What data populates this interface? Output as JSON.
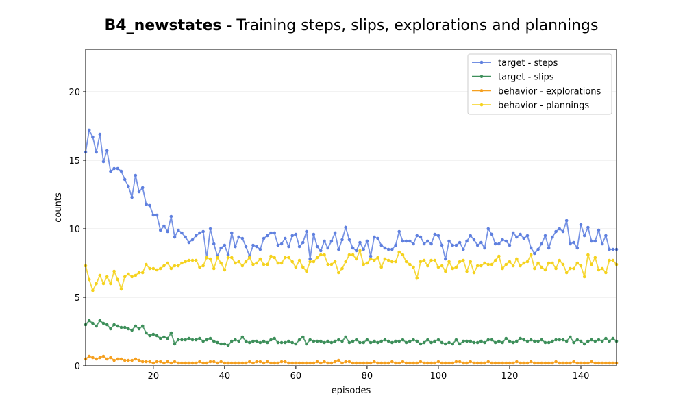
{
  "chart_data": {
    "type": "line",
    "title_bold": "B4_newstates",
    "title_rest": " - Training steps, slips, explorations and plannings",
    "xlabel": "episodes",
    "ylabel": "counts",
    "xlim": [
      1,
      150
    ],
    "ylim": [
      0,
      23.1
    ],
    "xticks": [
      20,
      40,
      60,
      80,
      100,
      120,
      140
    ],
    "yticks": [
      0,
      5,
      10,
      15,
      20
    ],
    "grid": "horizontal",
    "legend_position": "top-right",
    "x": [
      1,
      2,
      3,
      4,
      5,
      6,
      7,
      8,
      9,
      10,
      11,
      12,
      13,
      14,
      15,
      16,
      17,
      18,
      19,
      20,
      21,
      22,
      23,
      24,
      25,
      26,
      27,
      28,
      29,
      30,
      31,
      32,
      33,
      34,
      35,
      36,
      37,
      38,
      39,
      40,
      41,
      42,
      43,
      44,
      45,
      46,
      47,
      48,
      49,
      50,
      51,
      52,
      53,
      54,
      55,
      56,
      57,
      58,
      59,
      60,
      61,
      62,
      63,
      64,
      65,
      66,
      67,
      68,
      69,
      70,
      71,
      72,
      73,
      74,
      75,
      76,
      77,
      78,
      79,
      80,
      81,
      82,
      83,
      84,
      85,
      86,
      87,
      88,
      89,
      90,
      91,
      92,
      93,
      94,
      95,
      96,
      97,
      98,
      99,
      100,
      101,
      102,
      103,
      104,
      105,
      106,
      107,
      108,
      109,
      110,
      111,
      112,
      113,
      114,
      115,
      116,
      117,
      118,
      119,
      120,
      121,
      122,
      123,
      124,
      125,
      126,
      127,
      128,
      129,
      130,
      131,
      132,
      133,
      134,
      135,
      136,
      137,
      138,
      139,
      140,
      141,
      142,
      143,
      144,
      145,
      146,
      147,
      148,
      149,
      150
    ],
    "series": [
      {
        "name": "target - steps",
        "color": "#5f80df",
        "values": [
          15.6,
          17.2,
          16.7,
          15.6,
          16.9,
          14.9,
          15.7,
          14.2,
          14.4,
          14.4,
          14.2,
          13.6,
          13.1,
          12.3,
          13.9,
          12.7,
          13.0,
          11.8,
          11.7,
          11.0,
          11.0,
          9.9,
          10.2,
          9.8,
          10.9,
          9.4,
          9.9,
          9.7,
          9.4,
          9.0,
          9.2,
          9.5,
          9.7,
          9.8,
          7.9,
          10.0,
          8.9,
          8.0,
          8.6,
          8.8,
          8.1,
          9.7,
          8.7,
          9.4,
          9.3,
          8.7,
          8.0,
          8.8,
          8.7,
          8.5,
          9.3,
          9.5,
          9.7,
          9.7,
          8.8,
          8.9,
          9.3,
          8.7,
          9.5,
          9.6,
          8.7,
          9.0,
          9.8,
          7.8,
          9.6,
          8.7,
          8.4,
          9.1,
          8.6,
          9.1,
          9.7,
          8.5,
          9.2,
          10.1,
          9.2,
          8.6,
          8.4,
          9.0,
          8.5,
          9.1,
          8.0,
          9.4,
          9.3,
          8.8,
          8.6,
          8.5,
          8.5,
          8.8,
          9.8,
          9.1,
          9.1,
          9.1,
          8.9,
          9.5,
          9.4,
          8.9,
          9.1,
          8.9,
          9.6,
          9.5,
          8.8,
          7.8,
          9.1,
          8.8,
          8.8,
          9.0,
          8.5,
          9.1,
          9.5,
          9.2,
          8.8,
          9.0,
          8.6,
          10.0,
          9.6,
          8.9,
          8.9,
          9.2,
          9.1,
          8.8,
          9.7,
          9.4,
          9.6,
          9.3,
          9.5,
          8.6,
          8.2,
          8.5,
          8.9,
          9.5,
          8.6,
          9.4,
          9.8,
          10.0,
          9.8,
          10.6,
          8.9,
          9.0,
          8.6,
          10.3,
          9.5,
          10.1,
          9.1,
          9.1,
          9.9,
          8.9,
          9.5,
          8.5,
          8.5,
          8.5
        ]
      },
      {
        "name": "target - slips",
        "color": "#3d8f5a",
        "values": [
          3.0,
          3.3,
          3.1,
          2.9,
          3.3,
          3.1,
          3.0,
          2.7,
          3.0,
          2.9,
          2.8,
          2.8,
          2.7,
          2.6,
          2.9,
          2.7,
          2.9,
          2.4,
          2.2,
          2.3,
          2.2,
          2.0,
          2.1,
          2.0,
          2.4,
          1.6,
          1.9,
          1.9,
          1.9,
          2.0,
          1.9,
          1.9,
          2.0,
          1.8,
          1.9,
          2.0,
          1.8,
          1.7,
          1.6,
          1.6,
          1.5,
          1.8,
          1.9,
          1.8,
          2.1,
          1.8,
          1.7,
          1.8,
          1.8,
          1.7,
          1.8,
          1.7,
          1.9,
          2.0,
          1.7,
          1.7,
          1.7,
          1.8,
          1.7,
          1.6,
          1.9,
          2.1,
          1.6,
          1.9,
          1.8,
          1.8,
          1.8,
          1.7,
          1.8,
          1.7,
          1.8,
          1.9,
          1.8,
          2.1,
          1.7,
          1.8,
          1.9,
          1.7,
          1.7,
          1.9,
          1.7,
          1.8,
          1.7,
          1.8,
          1.9,
          1.8,
          1.7,
          1.8,
          1.8,
          1.9,
          1.7,
          1.8,
          1.9,
          1.8,
          1.6,
          1.7,
          1.9,
          1.7,
          1.8,
          1.9,
          1.7,
          1.6,
          1.7,
          1.6,
          1.9,
          1.6,
          1.8,
          1.8,
          1.8,
          1.7,
          1.7,
          1.8,
          1.7,
          1.9,
          1.9,
          1.7,
          1.8,
          1.7,
          2.0,
          1.8,
          1.7,
          1.8,
          2.0,
          1.9,
          1.8,
          1.9,
          1.8,
          1.8,
          1.9,
          1.7,
          1.7,
          1.8,
          1.9,
          1.9,
          1.9,
          1.8,
          2.1,
          1.7,
          1.9,
          1.8,
          1.6,
          1.8,
          1.9,
          1.8,
          1.9,
          1.8,
          2.0,
          1.8,
          2.0,
          1.8
        ]
      },
      {
        "name": "behavior - explorations",
        "color": "#f5a020",
        "values": [
          0.5,
          0.7,
          0.6,
          0.5,
          0.6,
          0.7,
          0.5,
          0.6,
          0.4,
          0.5,
          0.5,
          0.4,
          0.4,
          0.4,
          0.5,
          0.4,
          0.3,
          0.3,
          0.3,
          0.2,
          0.3,
          0.3,
          0.2,
          0.3,
          0.2,
          0.3,
          0.2,
          0.2,
          0.2,
          0.2,
          0.2,
          0.2,
          0.3,
          0.2,
          0.2,
          0.3,
          0.3,
          0.2,
          0.3,
          0.2,
          0.2,
          0.2,
          0.2,
          0.2,
          0.2,
          0.2,
          0.3,
          0.2,
          0.3,
          0.3,
          0.2,
          0.3,
          0.2,
          0.2,
          0.2,
          0.3,
          0.3,
          0.2,
          0.2,
          0.2,
          0.2,
          0.2,
          0.2,
          0.2,
          0.2,
          0.3,
          0.2,
          0.3,
          0.2,
          0.2,
          0.3,
          0.4,
          0.2,
          0.3,
          0.3,
          0.2,
          0.2,
          0.2,
          0.2,
          0.2,
          0.2,
          0.3,
          0.2,
          0.2,
          0.2,
          0.2,
          0.3,
          0.2,
          0.2,
          0.3,
          0.2,
          0.2,
          0.2,
          0.2,
          0.3,
          0.2,
          0.2,
          0.2,
          0.2,
          0.3,
          0.2,
          0.2,
          0.2,
          0.2,
          0.3,
          0.3,
          0.2,
          0.2,
          0.3,
          0.2,
          0.2,
          0.2,
          0.2,
          0.3,
          0.2,
          0.2,
          0.2,
          0.2,
          0.2,
          0.2,
          0.2,
          0.3,
          0.2,
          0.2,
          0.2,
          0.3,
          0.2,
          0.2,
          0.2,
          0.2,
          0.2,
          0.2,
          0.3,
          0.2,
          0.2,
          0.2,
          0.2,
          0.3,
          0.2,
          0.2,
          0.2,
          0.2,
          0.3,
          0.2,
          0.2,
          0.2,
          0.2,
          0.2,
          0.2,
          0.2
        ]
      },
      {
        "name": "behavior - plannings",
        "color": "#f5d21e",
        "values": [
          7.3,
          6.3,
          5.5,
          6.0,
          6.6,
          6.0,
          6.5,
          6.0,
          6.9,
          6.3,
          5.6,
          6.5,
          6.7,
          6.5,
          6.6,
          6.8,
          6.8,
          7.4,
          7.1,
          7.1,
          7.0,
          7.1,
          7.3,
          7.5,
          7.1,
          7.3,
          7.3,
          7.5,
          7.6,
          7.7,
          7.7,
          7.7,
          7.2,
          7.3,
          7.9,
          7.8,
          7.1,
          7.9,
          7.5,
          7.0,
          7.9,
          7.9,
          7.5,
          7.6,
          7.3,
          7.6,
          7.9,
          7.4,
          7.5,
          7.8,
          7.4,
          7.4,
          8.0,
          7.9,
          7.5,
          7.5,
          7.9,
          7.9,
          7.6,
          7.2,
          7.7,
          7.2,
          6.9,
          7.6,
          7.6,
          7.9,
          8.1,
          8.1,
          7.4,
          7.4,
          7.6,
          6.8,
          7.1,
          7.6,
          8.1,
          8.1,
          7.8,
          8.4,
          7.4,
          7.5,
          7.8,
          7.7,
          7.9,
          7.2,
          7.8,
          7.7,
          7.6,
          7.6,
          8.3,
          8.1,
          7.6,
          7.4,
          7.2,
          6.4,
          7.6,
          7.7,
          7.3,
          7.7,
          7.7,
          7.2,
          7.3,
          6.9,
          7.6,
          7.1,
          7.2,
          7.6,
          7.7,
          6.9,
          7.6,
          6.8,
          7.3,
          7.3,
          7.5,
          7.4,
          7.4,
          7.7,
          8.0,
          7.1,
          7.4,
          7.6,
          7.3,
          7.8,
          7.3,
          7.5,
          7.6,
          8.1,
          7.1,
          7.5,
          7.2,
          7.0,
          7.5,
          7.5,
          7.1,
          7.7,
          7.4,
          6.8,
          7.1,
          7.1,
          7.5,
          7.3,
          6.5,
          8.1,
          7.4,
          7.9,
          7.0,
          7.1,
          6.8,
          7.7,
          7.7,
          7.4
        ]
      }
    ]
  }
}
